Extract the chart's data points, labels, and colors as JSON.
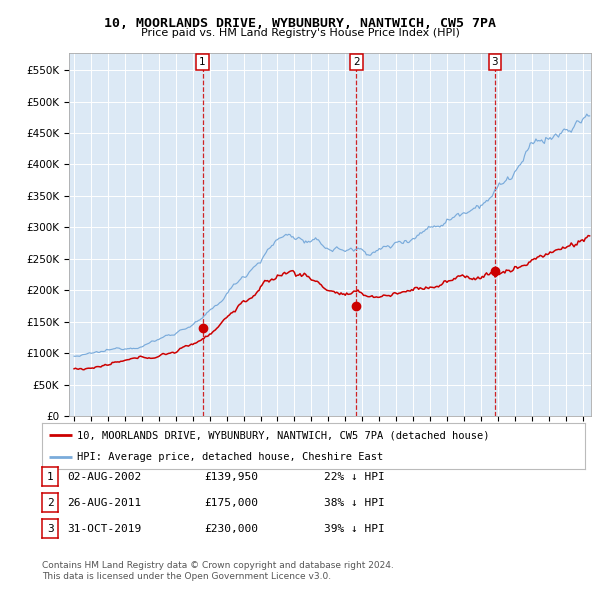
{
  "title": "10, MOORLANDS DRIVE, WYBUNBURY, NANTWICH, CW5 7PA",
  "subtitle": "Price paid vs. HM Land Registry's House Price Index (HPI)",
  "ylim": [
    0,
    577000
  ],
  "background_color": "#dce9f5",
  "hpi_color": "#7aabdb",
  "price_color": "#cc0000",
  "sale_dates": [
    2002.583,
    2011.653,
    2019.833
  ],
  "sale_prices": [
    139950,
    175000,
    230000
  ],
  "legend_entries": [
    "10, MOORLANDS DRIVE, WYBUNBURY, NANTWICH, CW5 7PA (detached house)",
    "HPI: Average price, detached house, Cheshire East"
  ],
  "table_data": [
    [
      "1",
      "02-AUG-2002",
      "£139,950",
      "22% ↓ HPI"
    ],
    [
      "2",
      "26-AUG-2011",
      "£175,000",
      "38% ↓ HPI"
    ],
    [
      "3",
      "31-OCT-2019",
      "£230,000",
      "39% ↓ HPI"
    ]
  ],
  "footnote1": "Contains HM Land Registry data © Crown copyright and database right 2024.",
  "footnote2": "This data is licensed under the Open Government Licence v3.0."
}
